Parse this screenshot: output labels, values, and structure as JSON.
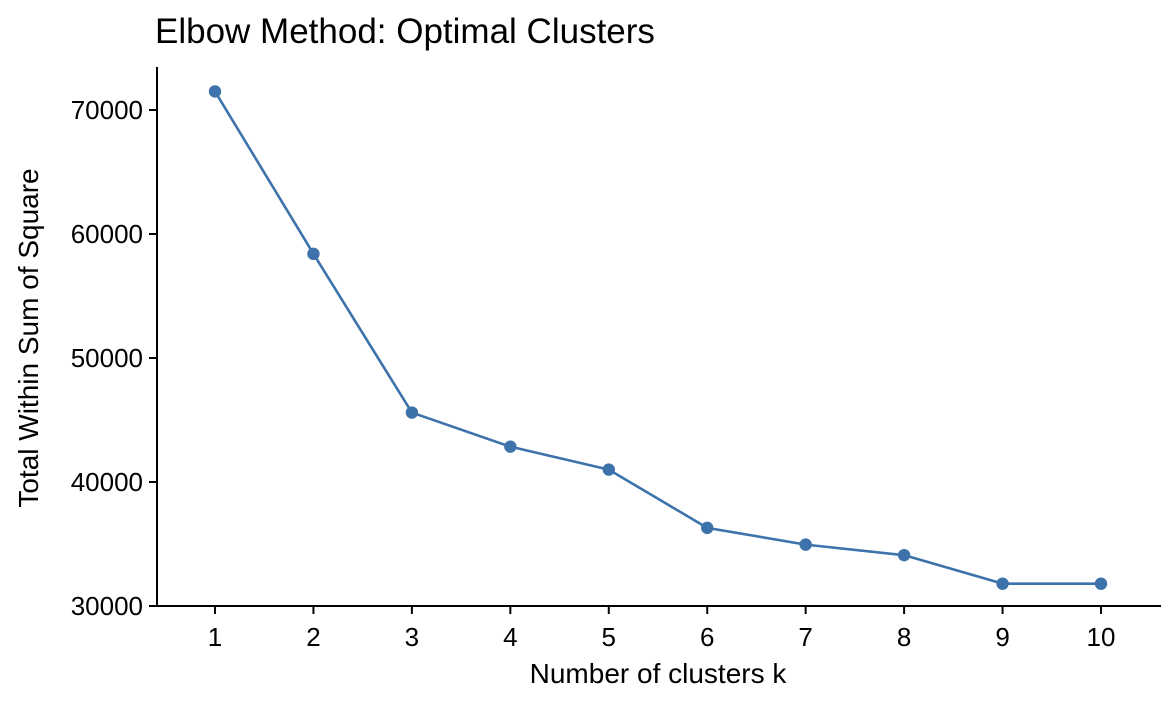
{
  "chart_data": {
    "type": "line",
    "title": "Elbow Method: Optimal Clusters",
    "xlabel": "Number of clusters k",
    "ylabel": "Total Within Sum of Square",
    "categories": [
      "1",
      "2",
      "3",
      "4",
      "5",
      "6",
      "7",
      "8",
      "9",
      "10"
    ],
    "series": [
      {
        "values": [
          71500,
          58400,
          45600,
          42850,
          41000,
          36300,
          34950,
          34100,
          31800,
          31800
        ]
      }
    ],
    "yticks": [
      30000,
      40000,
      50000,
      60000,
      70000
    ],
    "ytick_labels": [
      "30000",
      "40000",
      "50000",
      "60000",
      "70000"
    ],
    "ylim": [
      30000,
      73500
    ],
    "grid": false,
    "colors": {
      "series": "#3D72AB",
      "axis": "#000000"
    }
  }
}
